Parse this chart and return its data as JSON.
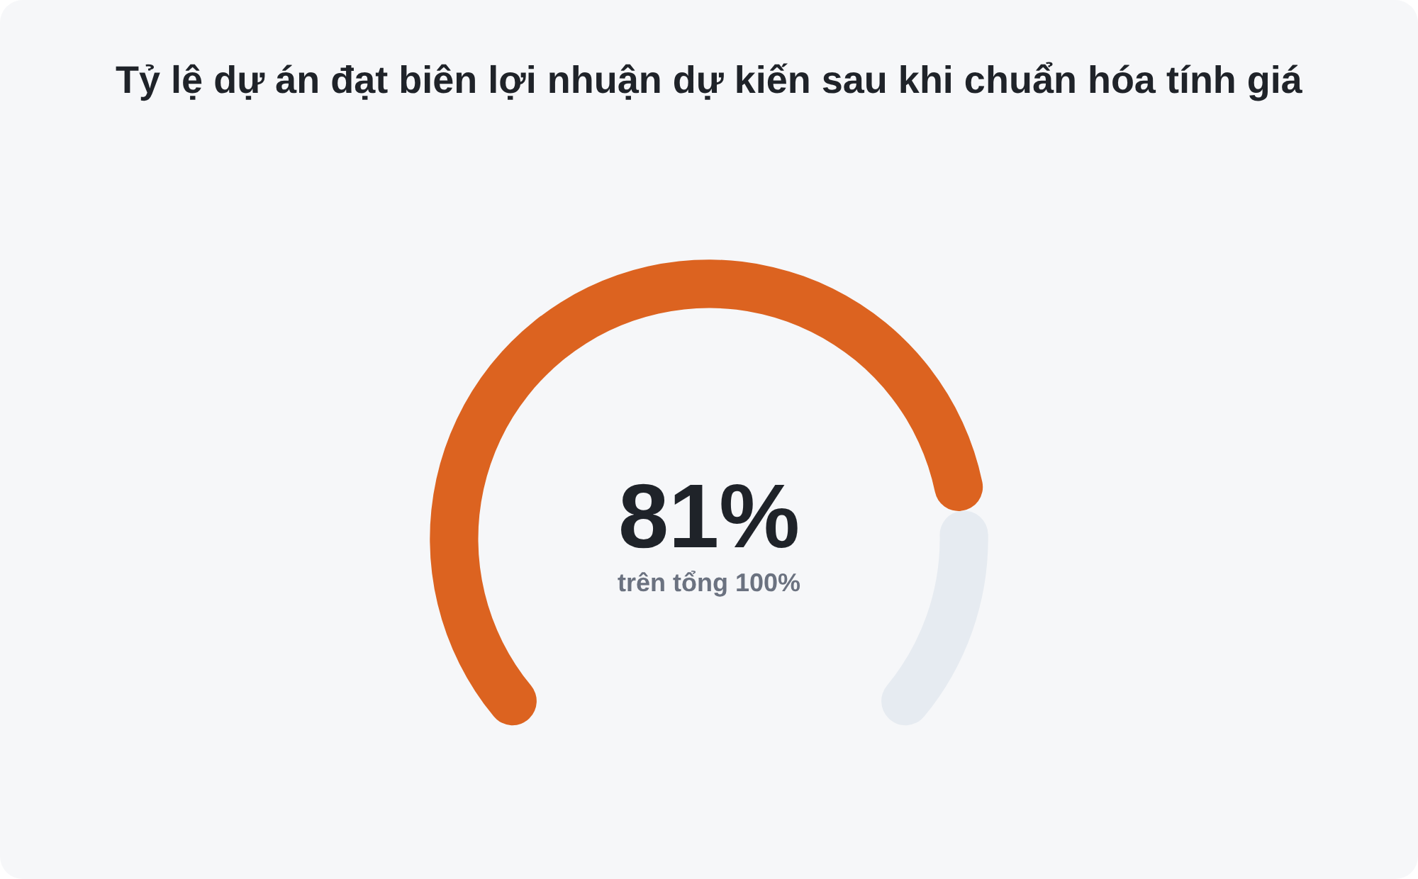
{
  "chart_data": {
    "type": "donut",
    "title": "Tỷ lệ dự án đạt biên lợi nhuận dự kiến sau khi chuẩn hóa tính giá",
    "categories": [
      null,
      null
    ],
    "values": [
      81,
      19
    ],
    "colors": [
      "#dc6320",
      "#e6ebf1"
    ],
    "value_labels": [
      "81%",
      null
    ],
    "annotations": [
      "trên tổng 100%"
    ]
  }
}
